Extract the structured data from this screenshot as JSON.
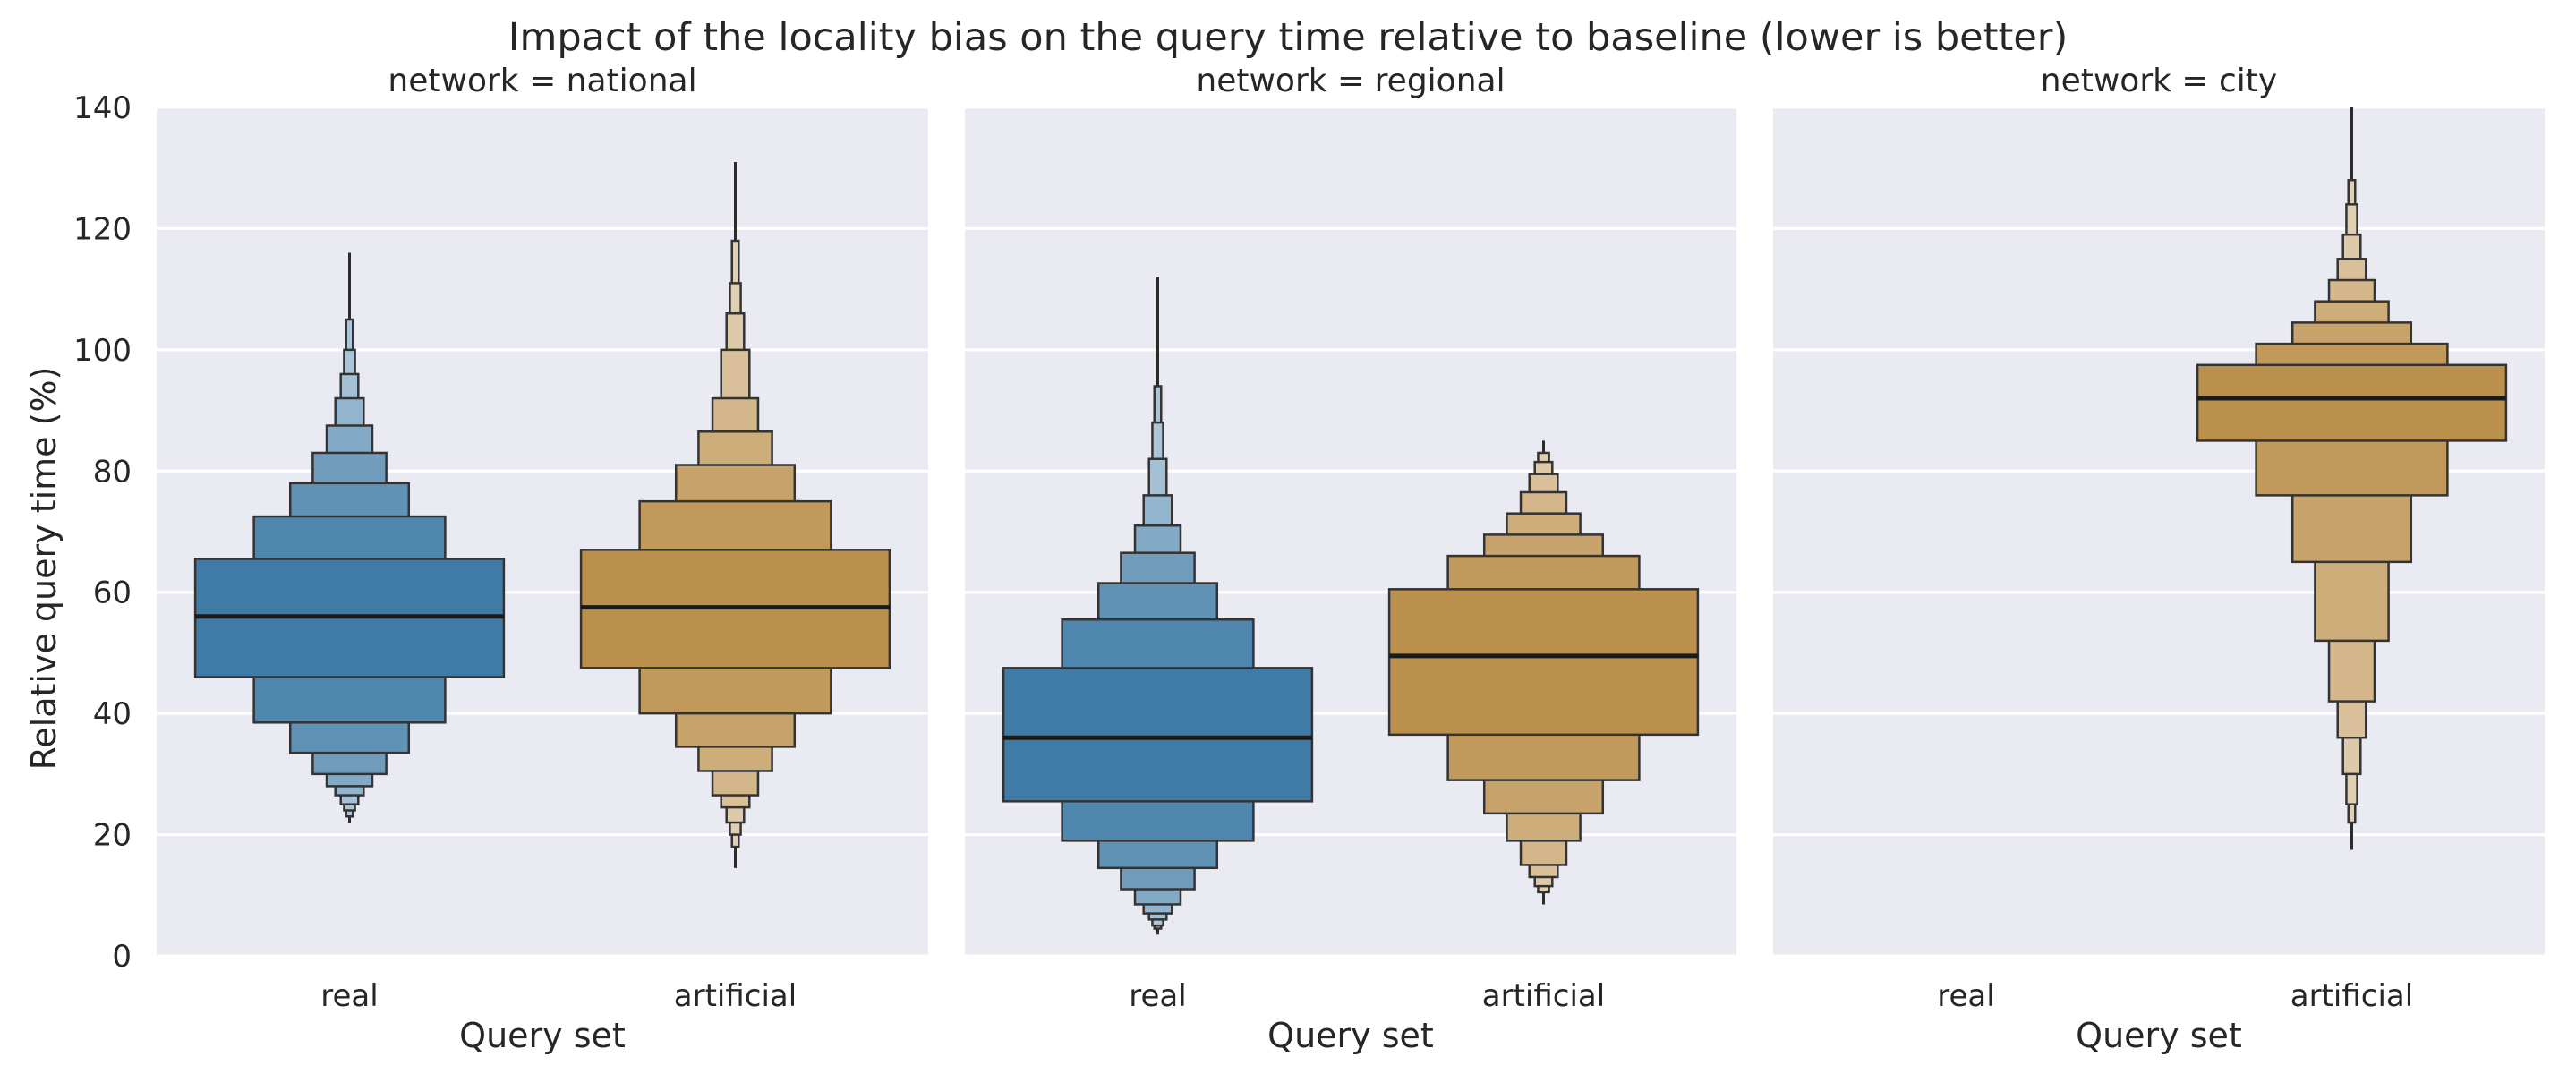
{
  "chart_data": {
    "type": "boxen",
    "title": "Impact of the locality bias on the query time relative to baseline (lower is better)",
    "ylabel": "Relative query time (%)",
    "xlabel": "Query set",
    "ylim": [
      0,
      140
    ],
    "yticks": [
      0,
      20,
      40,
      60,
      80,
      100,
      120,
      140
    ],
    "categories": [
      "real",
      "artificial"
    ],
    "colors": {
      "real": "#2e6f9e",
      "artificial": "#b5863c"
    },
    "grid": true,
    "panels": [
      {
        "title": "network = national",
        "series": [
          {
            "category": "real",
            "median": 56,
            "levels": [
              [
                46,
                65.5
              ],
              [
                38.5,
                72.5
              ],
              [
                33.5,
                78
              ],
              [
                30,
                83
              ],
              [
                28,
                87.5
              ],
              [
                26.5,
                92
              ],
              [
                25,
                96
              ],
              [
                24,
                100
              ],
              [
                23,
                105
              ]
            ],
            "whisker": [
              22,
              116
            ]
          },
          {
            "category": "artificial",
            "median": 57.5,
            "levels": [
              [
                47.5,
                67
              ],
              [
                40,
                75
              ],
              [
                34.5,
                81
              ],
              [
                30.5,
                86.5
              ],
              [
                26.5,
                92
              ],
              [
                24.5,
                100
              ],
              [
                22,
                106
              ],
              [
                20,
                111
              ],
              [
                18,
                118
              ]
            ],
            "whisker": [
              14.5,
              131
            ]
          }
        ]
      },
      {
        "title": "network = regional",
        "series": [
          {
            "category": "real",
            "median": 36,
            "levels": [
              [
                25.5,
                47.5
              ],
              [
                19,
                55.5
              ],
              [
                14.5,
                61.5
              ],
              [
                11,
                66.5
              ],
              [
                8.5,
                71
              ],
              [
                7,
                76
              ],
              [
                6,
                82
              ],
              [
                5,
                88
              ],
              [
                4.5,
                94
              ]
            ],
            "whisker": [
              3.5,
              112
            ]
          },
          {
            "category": "artificial",
            "median": 49.5,
            "levels": [
              [
                36.5,
                60.5
              ],
              [
                29,
                66
              ],
              [
                23.5,
                69.5
              ],
              [
                19,
                73
              ],
              [
                15,
                76.5
              ],
              [
                13,
                79.5
              ],
              [
                11.5,
                81.5
              ],
              [
                10.5,
                83
              ]
            ],
            "whisker": [
              8.5,
              85
            ]
          }
        ]
      },
      {
        "title": "network = city",
        "series": [
          {
            "category": "artificial",
            "median": 92,
            "levels": [
              [
                85,
                97.5
              ],
              [
                76,
                101
              ],
              [
                65,
                104.5
              ],
              [
                52,
                108
              ],
              [
                42,
                111.5
              ],
              [
                36,
                115
              ],
              [
                30,
                119
              ],
              [
                25,
                124
              ],
              [
                22,
                128
              ]
            ],
            "whisker": [
              17.5,
              140
            ]
          }
        ]
      }
    ]
  }
}
